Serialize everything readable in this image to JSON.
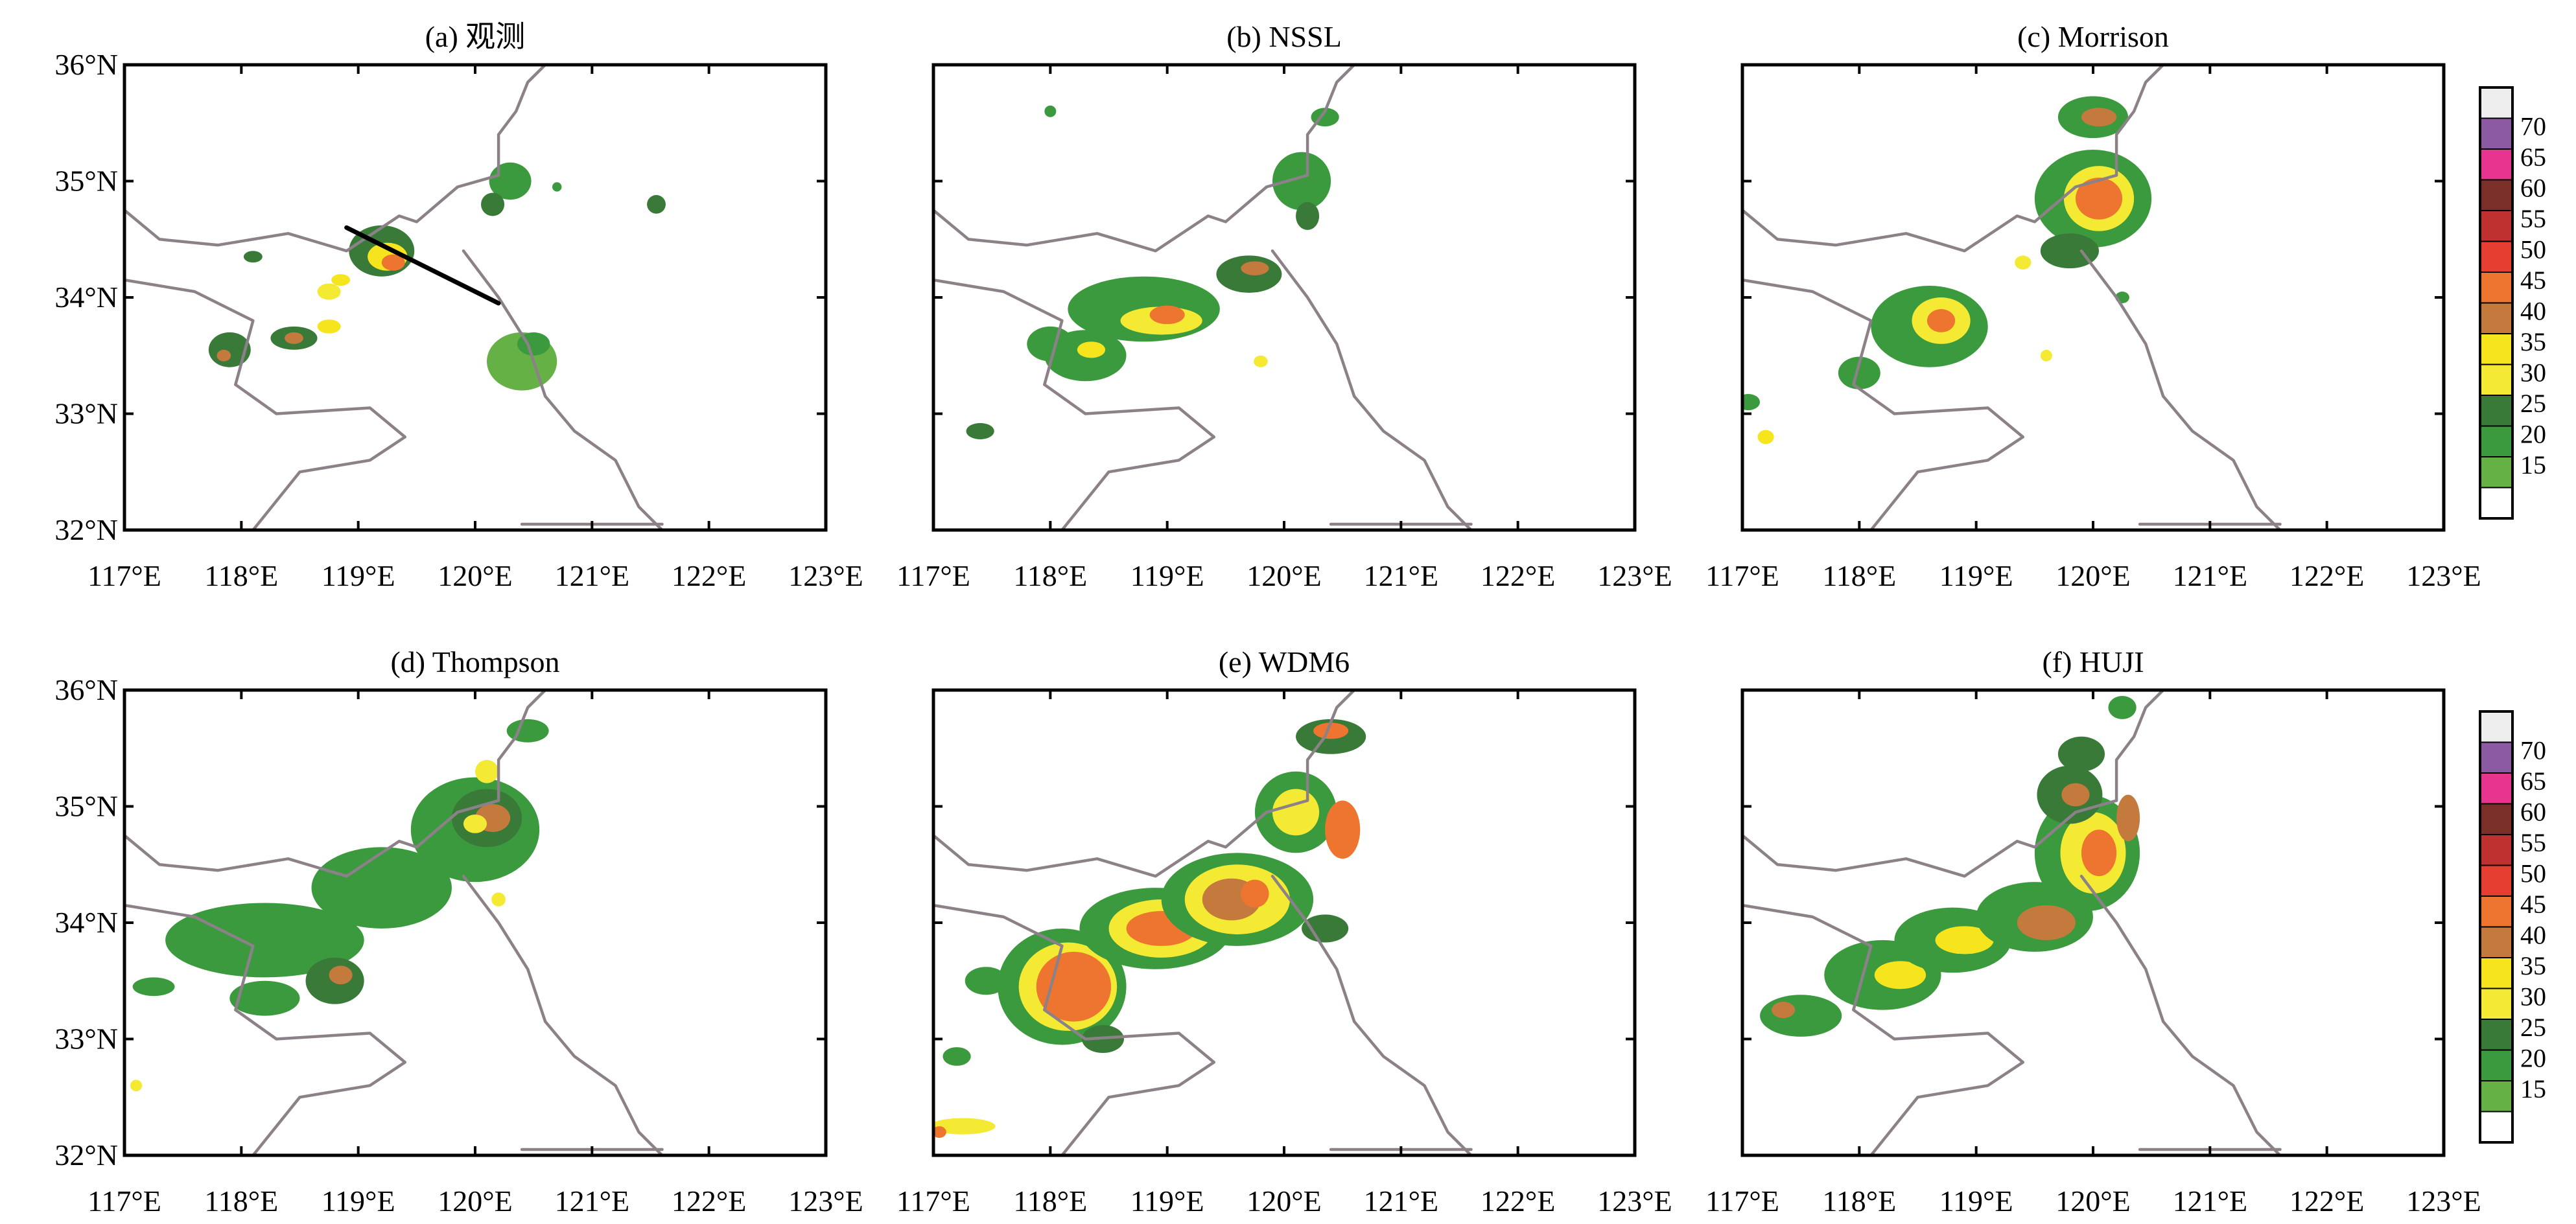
{
  "panels": [
    {
      "id": "a",
      "title": "(a) 观测",
      "has_section_line": true,
      "cells": [
        [
          34.35,
          118.1,
          0.08,
          0.05,
          25
        ],
        [
          34.05,
          118.75,
          0.1,
          0.07,
          30
        ],
        [
          34.15,
          118.85,
          0.08,
          0.05,
          35
        ],
        [
          34.4,
          119.2,
          0.28,
          0.22,
          25
        ],
        [
          34.35,
          119.25,
          0.17,
          0.12,
          35
        ],
        [
          34.3,
          119.3,
          0.1,
          0.07,
          45
        ],
        [
          33.55,
          117.9,
          0.18,
          0.15,
          25
        ],
        [
          33.5,
          117.85,
          0.06,
          0.05,
          40
        ],
        [
          33.65,
          118.45,
          0.2,
          0.1,
          25
        ],
        [
          33.65,
          118.45,
          0.08,
          0.05,
          40
        ],
        [
          33.75,
          118.75,
          0.1,
          0.06,
          35
        ],
        [
          33.45,
          120.4,
          0.3,
          0.25,
          15
        ],
        [
          33.6,
          120.5,
          0.14,
          0.1,
          20
        ],
        [
          35.0,
          120.3,
          0.18,
          0.16,
          20
        ],
        [
          34.8,
          120.15,
          0.1,
          0.1,
          25
        ],
        [
          34.8,
          121.55,
          0.08,
          0.08,
          25
        ],
        [
          34.95,
          120.7,
          0.04,
          0.04,
          20
        ]
      ]
    },
    {
      "id": "b",
      "title": "(b) NSSL",
      "has_section_line": false,
      "cells": [
        [
          33.9,
          118.8,
          0.65,
          0.28,
          20
        ],
        [
          33.8,
          118.95,
          0.35,
          0.12,
          30
        ],
        [
          33.85,
          119.0,
          0.15,
          0.08,
          45
        ],
        [
          33.5,
          118.3,
          0.35,
          0.22,
          20
        ],
        [
          33.55,
          118.35,
          0.12,
          0.07,
          35
        ],
        [
          33.6,
          118.0,
          0.2,
          0.15,
          20
        ],
        [
          34.2,
          119.7,
          0.28,
          0.16,
          25
        ],
        [
          34.25,
          119.75,
          0.12,
          0.06,
          40
        ],
        [
          35.0,
          120.15,
          0.25,
          0.25,
          20
        ],
        [
          34.7,
          120.2,
          0.1,
          0.12,
          25
        ],
        [
          35.55,
          120.35,
          0.12,
          0.08,
          20
        ],
        [
          33.45,
          119.8,
          0.06,
          0.05,
          30
        ],
        [
          32.85,
          117.4,
          0.12,
          0.07,
          25
        ],
        [
          35.6,
          118.0,
          0.05,
          0.05,
          20
        ]
      ]
    },
    {
      "id": "c",
      "title": "(c) Morrison",
      "has_section_line": false,
      "cells": [
        [
          35.55,
          120.0,
          0.3,
          0.18,
          20
        ],
        [
          35.55,
          120.05,
          0.15,
          0.08,
          40
        ],
        [
          34.85,
          120.0,
          0.5,
          0.42,
          20
        ],
        [
          34.85,
          120.05,
          0.3,
          0.28,
          30
        ],
        [
          34.85,
          120.05,
          0.2,
          0.18,
          45
        ],
        [
          34.4,
          119.8,
          0.25,
          0.15,
          25
        ],
        [
          33.75,
          118.6,
          0.5,
          0.35,
          20
        ],
        [
          33.8,
          118.7,
          0.25,
          0.2,
          30
        ],
        [
          33.8,
          118.7,
          0.12,
          0.1,
          45
        ],
        [
          33.35,
          118.0,
          0.18,
          0.14,
          20
        ],
        [
          34.3,
          119.4,
          0.07,
          0.06,
          30
        ],
        [
          33.1,
          117.05,
          0.1,
          0.07,
          20
        ],
        [
          32.8,
          117.2,
          0.07,
          0.06,
          35
        ],
        [
          34.0,
          120.25,
          0.06,
          0.05,
          20
        ],
        [
          33.5,
          119.6,
          0.05,
          0.05,
          30
        ]
      ]
    },
    {
      "id": "d",
      "title": "(d) Thompson",
      "has_section_line": false,
      "cells": [
        [
          33.85,
          118.2,
          0.85,
          0.32,
          20
        ],
        [
          34.3,
          119.2,
          0.6,
          0.35,
          20
        ],
        [
          34.8,
          120.0,
          0.55,
          0.45,
          20
        ],
        [
          34.9,
          120.1,
          0.3,
          0.25,
          25
        ],
        [
          34.9,
          120.15,
          0.15,
          0.12,
          40
        ],
        [
          34.85,
          120.0,
          0.1,
          0.08,
          30
        ],
        [
          33.5,
          118.8,
          0.25,
          0.2,
          25
        ],
        [
          33.55,
          118.85,
          0.1,
          0.08,
          40
        ],
        [
          33.35,
          118.2,
          0.3,
          0.15,
          20
        ],
        [
          35.3,
          120.1,
          0.1,
          0.1,
          30
        ],
        [
          35.65,
          120.45,
          0.18,
          0.1,
          20
        ],
        [
          34.2,
          120.2,
          0.06,
          0.06,
          30
        ],
        [
          33.45,
          117.25,
          0.18,
          0.08,
          20
        ],
        [
          32.6,
          117.1,
          0.05,
          0.05,
          30
        ]
      ]
    },
    {
      "id": "e",
      "title": "(e) WDM6",
      "has_section_line": false,
      "cells": [
        [
          33.45,
          118.1,
          0.55,
          0.5,
          20
        ],
        [
          33.45,
          118.15,
          0.42,
          0.38,
          30
        ],
        [
          33.45,
          118.2,
          0.32,
          0.3,
          45
        ],
        [
          33.95,
          118.9,
          0.65,
          0.35,
          20
        ],
        [
          33.95,
          118.95,
          0.45,
          0.25,
          30
        ],
        [
          33.95,
          118.95,
          0.3,
          0.15,
          45
        ],
        [
          34.2,
          119.6,
          0.65,
          0.4,
          20
        ],
        [
          34.2,
          119.6,
          0.45,
          0.3,
          30
        ],
        [
          34.2,
          119.55,
          0.25,
          0.18,
          40
        ],
        [
          34.25,
          119.75,
          0.12,
          0.12,
          45
        ],
        [
          34.95,
          120.1,
          0.35,
          0.35,
          20
        ],
        [
          34.95,
          120.1,
          0.2,
          0.2,
          30
        ],
        [
          34.8,
          120.5,
          0.15,
          0.25,
          45
        ],
        [
          35.6,
          120.4,
          0.3,
          0.15,
          25
        ],
        [
          35.65,
          120.4,
          0.15,
          0.07,
          45
        ],
        [
          33.95,
          120.35,
          0.2,
          0.12,
          25
        ],
        [
          33.5,
          117.45,
          0.18,
          0.12,
          20
        ],
        [
          32.25,
          117.25,
          0.28,
          0.07,
          30
        ],
        [
          32.2,
          117.05,
          0.06,
          0.05,
          45
        ],
        [
          33.0,
          118.45,
          0.18,
          0.12,
          25
        ],
        [
          32.85,
          117.2,
          0.12,
          0.08,
          20
        ]
      ]
    },
    {
      "id": "f",
      "title": "(f) HUJI",
      "has_section_line": false,
      "cells": [
        [
          33.2,
          117.5,
          0.35,
          0.18,
          20
        ],
        [
          33.25,
          117.35,
          0.1,
          0.07,
          40
        ],
        [
          33.55,
          118.2,
          0.5,
          0.3,
          20
        ],
        [
          33.55,
          118.35,
          0.22,
          0.12,
          35
        ],
        [
          33.85,
          118.8,
          0.5,
          0.28,
          20
        ],
        [
          33.85,
          118.9,
          0.25,
          0.12,
          35
        ],
        [
          34.05,
          119.5,
          0.5,
          0.3,
          20
        ],
        [
          34.0,
          119.6,
          0.25,
          0.15,
          40
        ],
        [
          34.6,
          119.95,
          0.45,
          0.5,
          20
        ],
        [
          34.6,
          120.0,
          0.28,
          0.35,
          30
        ],
        [
          34.6,
          120.05,
          0.15,
          0.2,
          45
        ],
        [
          35.1,
          119.8,
          0.28,
          0.25,
          25
        ],
        [
          35.1,
          119.85,
          0.12,
          0.1,
          40
        ],
        [
          35.45,
          119.9,
          0.2,
          0.15,
          25
        ],
        [
          34.9,
          120.3,
          0.1,
          0.2,
          40
        ],
        [
          35.85,
          120.25,
          0.12,
          0.1,
          20
        ]
      ]
    }
  ],
  "axes": {
    "lon_ticks": [
      "117°E",
      "118°E",
      "119°E",
      "120°E",
      "121°E",
      "122°E",
      "123°E"
    ],
    "lat_ticks": [
      "36°N",
      "35°N",
      "34°N",
      "33°N",
      "32°N"
    ],
    "lon_range": [
      117,
      123
    ],
    "lat_range": [
      32,
      36
    ]
  },
  "colorbar": {
    "levels": [
      15,
      20,
      25,
      30,
      35,
      40,
      45,
      50,
      55,
      60,
      65,
      70
    ],
    "labels": [
      "70",
      "65",
      "60",
      "55",
      "50",
      "45",
      "40",
      "35",
      "30",
      "25",
      "20",
      "15"
    ],
    "colors": [
      "#ffffff",
      "#65b146",
      "#3c9a3e",
      "#3a7a38",
      "#f5ea33",
      "#f6e51c",
      "#c47a3d",
      "#ee7530",
      "#e63e30",
      "#bf3030",
      "#7a3028",
      "#e7358f",
      "#8b5aa3",
      "#eeeeee"
    ]
  },
  "coastline": [
    [
      117.0,
      34.75
    ],
    [
      117.3,
      34.5
    ],
    [
      117.8,
      34.45
    ],
    [
      118.4,
      34.55
    ],
    [
      118.9,
      34.4
    ],
    [
      119.35,
      34.7
    ],
    [
      119.5,
      34.65
    ],
    [
      119.85,
      34.95
    ],
    [
      120.2,
      35.05
    ],
    [
      120.2,
      35.4
    ],
    [
      120.35,
      35.6
    ],
    [
      120.45,
      35.85
    ],
    [
      120.6,
      36.0
    ]
  ],
  "boundary": [
    [
      117.0,
      34.15
    ],
    [
      117.6,
      34.05
    ],
    [
      118.1,
      33.8
    ],
    [
      117.95,
      33.25
    ],
    [
      118.3,
      33.0
    ],
    [
      119.1,
      33.05
    ],
    [
      119.4,
      32.8
    ],
    [
      119.1,
      32.6
    ],
    [
      118.5,
      32.5
    ],
    [
      118.1,
      32.0
    ]
  ],
  "river": [
    [
      119.9,
      34.4
    ],
    [
      120.2,
      34.0
    ],
    [
      120.45,
      33.6
    ],
    [
      120.6,
      33.15
    ],
    [
      120.85,
      32.85
    ],
    [
      121.2,
      32.6
    ],
    [
      121.4,
      32.2
    ],
    [
      121.6,
      32.0
    ]
  ],
  "south_coast": [
    [
      120.4,
      32.05
    ],
    [
      121.0,
      32.05
    ],
    [
      121.6,
      32.05
    ]
  ]
}
